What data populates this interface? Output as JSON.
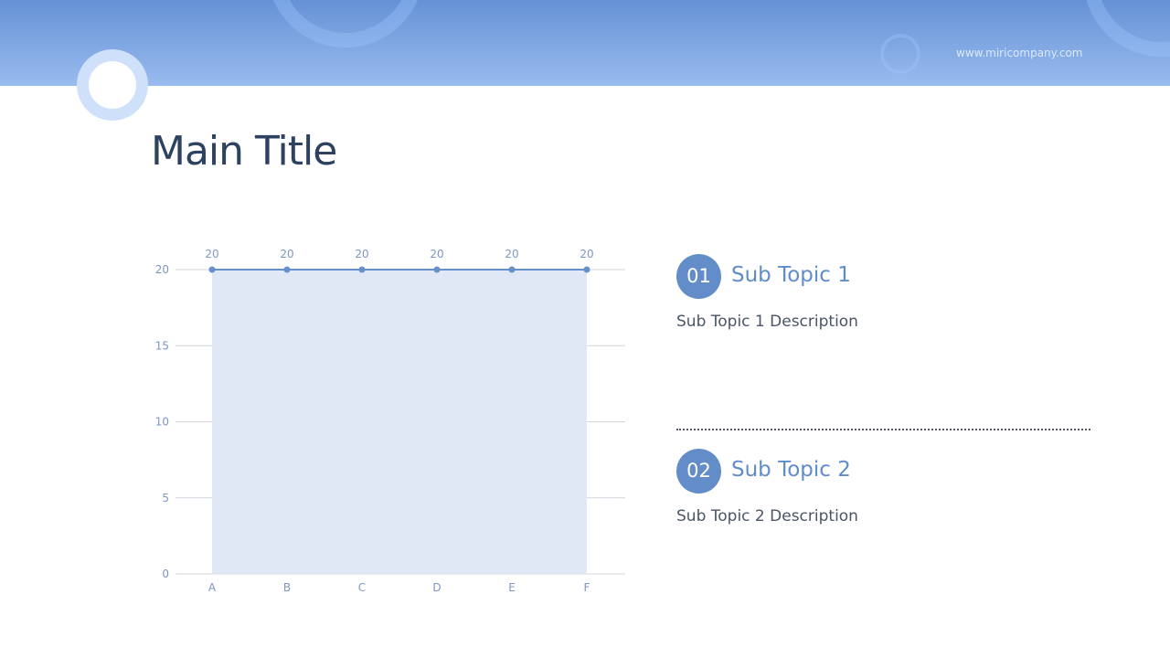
{
  "header": {
    "url": "www.miricompany.com"
  },
  "title": "Main Title",
  "topics": [
    {
      "number": "01",
      "title": "Sub Topic 1",
      "description": "Sub Topic 1 Description"
    },
    {
      "number": "02",
      "title": "Sub Topic 2",
      "description": "Sub Topic 2 Description"
    }
  ],
  "colors": {
    "accent": "#628dc9",
    "line": "#6590cc",
    "fill": "#dfe7f4",
    "title": "#2c4260"
  },
  "chart_data": {
    "type": "area",
    "categories": [
      "A",
      "B",
      "C",
      "D",
      "E",
      "F"
    ],
    "values": [
      20,
      20,
      20,
      20,
      20,
      20
    ],
    "data_labels": [
      "20",
      "20",
      "20",
      "20",
      "20",
      "20"
    ],
    "yticks": [
      "0",
      "5",
      "10",
      "15",
      "20"
    ],
    "ylim": [
      0,
      20
    ],
    "grid": true
  }
}
